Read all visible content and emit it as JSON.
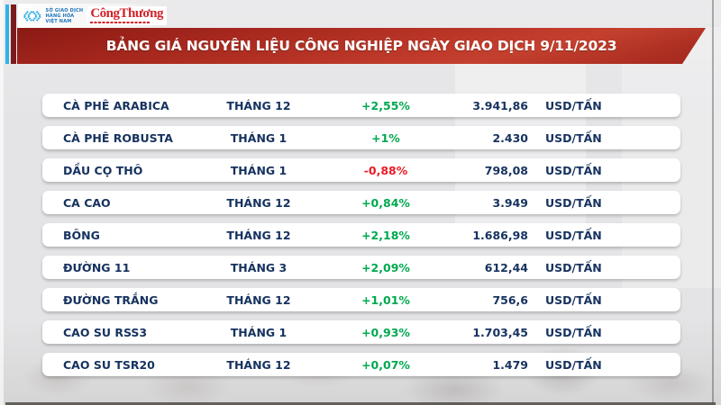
{
  "header": {
    "exchange": {
      "line1": "SỞ GIAO DỊCH",
      "line2": "HÀNG HÓA",
      "line3": "VIỆT NAM",
      "logo_icon": "mxv-chevrons-icon"
    },
    "masthead": {
      "name": "CôngThương"
    },
    "title": "BẢNG GIÁ NGUYÊN LIỆU CÔNG NGHIỆP NGÀY GIAO DỊCH 9/11/2023",
    "trade_date": "9/11/2023"
  },
  "table": {
    "rows": [
      {
        "commodity": "CÀ PHÊ ARABICA",
        "month": "THÁNG 12",
        "change": "+2,55%",
        "trend": "up",
        "price": "3.941,86",
        "unit": "USD/TẤN"
      },
      {
        "commodity": "CÀ PHÊ ROBUSTA",
        "month": "THÁNG 1",
        "change": "+1%",
        "trend": "up",
        "price": "2.430",
        "unit": "USD/TẤN"
      },
      {
        "commodity": "DẦU CỌ THÔ",
        "month": "THÁNG 1",
        "change": "-0,88%",
        "trend": "down",
        "price": "798,08",
        "unit": "USD/TẤN"
      },
      {
        "commodity": "CA CAO",
        "month": "THÁNG 12",
        "change": "+0,84%",
        "trend": "up",
        "price": "3.949",
        "unit": "USD/TẤN"
      },
      {
        "commodity": "BÔNG",
        "month": "THÁNG 12",
        "change": "+2,18%",
        "trend": "up",
        "price": "1.686,98",
        "unit": "USD/TẤN"
      },
      {
        "commodity": "ĐƯỜNG 11",
        "month": "THÁNG 3",
        "change": "+2,09%",
        "trend": "up",
        "price": "612,44",
        "unit": "USD/TẤN"
      },
      {
        "commodity": "ĐƯỜNG TRẮNG",
        "month": "THÁNG 12",
        "change": "+1,01%",
        "trend": "up",
        "price": "756,6",
        "unit": "USD/TẤN"
      },
      {
        "commodity": "CAO SU RSS3",
        "month": "THÁNG 1",
        "change": "+0,93%",
        "trend": "up",
        "price": "1.703,45",
        "unit": "USD/TẤN"
      },
      {
        "commodity": "CAO SU TSR20",
        "month": "THÁNG 12",
        "change": "+0,07%",
        "trend": "up",
        "price": "1.479",
        "unit": "USD/TẤN"
      }
    ]
  },
  "colors": {
    "up": "#00a94f",
    "down": "#e91c24",
    "text_navy": "#16325f",
    "banner_red": "#b02a20",
    "accent_blue_bar": "#2db3e8",
    "accent_darkred_bar": "#7c1b1b",
    "exchange_blue": "#1b74bb",
    "masthead_red": "#d2232a",
    "background": "#e4e4e6"
  },
  "chart_data": {
    "type": "table",
    "title": "BẢNG GIÁ NGUYÊN LIỆU CÔNG NGHIỆP NGÀY GIAO DỊCH 9/11/2023",
    "rows": [
      [
        "CÀ PHÊ ARABICA",
        "THÁNG 12",
        "+2,55%",
        "3.941,86",
        "USD/TẤN"
      ],
      [
        "CÀ PHÊ ROBUSTA",
        "THÁNG 1",
        "+1%",
        "2.430",
        "USD/TẤN"
      ],
      [
        "DẦU CỌ THÔ",
        "THÁNG 1",
        "-0,88%",
        "798,08",
        "USD/TẤN"
      ],
      [
        "CA CAO",
        "THÁNG 12",
        "+0,84%",
        "3.949",
        "USD/TẤN"
      ],
      [
        "BÔNG",
        "THÁNG 12",
        "+2,18%",
        "1.686,98",
        "USD/TẤN"
      ],
      [
        "ĐƯỜNG 11",
        "THÁNG 3",
        "+2,09%",
        "612,44",
        "USD/TẤN"
      ],
      [
        "ĐƯỜNG TRẮNG",
        "THÁNG 12",
        "+1,01%",
        "756,6",
        "USD/TẤN"
      ],
      [
        "CAO SU RSS3",
        "THÁNG 1",
        "+0,93%",
        "1.703,45",
        "USD/TẤN"
      ],
      [
        "CAO SU TSR20",
        "THÁNG 12",
        "+0,07%",
        "1.479",
        "USD/TẤN"
      ]
    ]
  }
}
